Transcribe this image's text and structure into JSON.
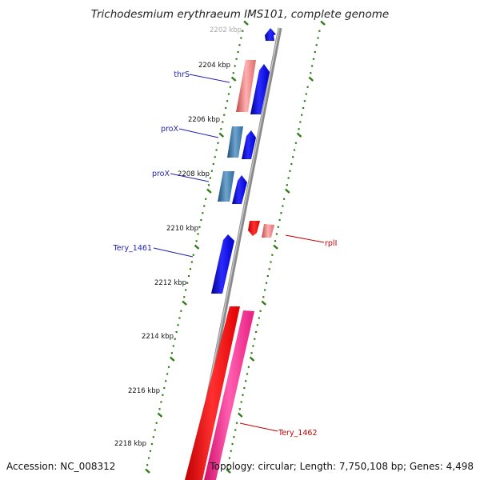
{
  "title": "Trichodesmium erythraeum IMS101, complete genome",
  "top_tick_partial": "2202 kbp",
  "ticks": [
    "2204 kbp",
    "2206 kbp",
    "2208 kbp",
    "2210 kbp",
    "2212 kbp",
    "2214 kbp",
    "2216 kbp",
    "2218 kbp"
  ],
  "genes": {
    "thrS": "thrS",
    "proX_1": "proX",
    "proX_2": "proX",
    "tery1461": "Tery_1461",
    "rplI": "rplI",
    "tery1462": "Tery_1462"
  },
  "footer": {
    "accession": "Accession: NC_008312",
    "summary": "Topology: circular; Length: 7,750,108 bp; Genes: 4,498"
  },
  "colors": {
    "forward_strand": "#0000ee",
    "reverse_strand": "#ee0000",
    "rna": "#ff1493",
    "tick_green": "#2e7d12",
    "backbone": "#888888"
  }
}
